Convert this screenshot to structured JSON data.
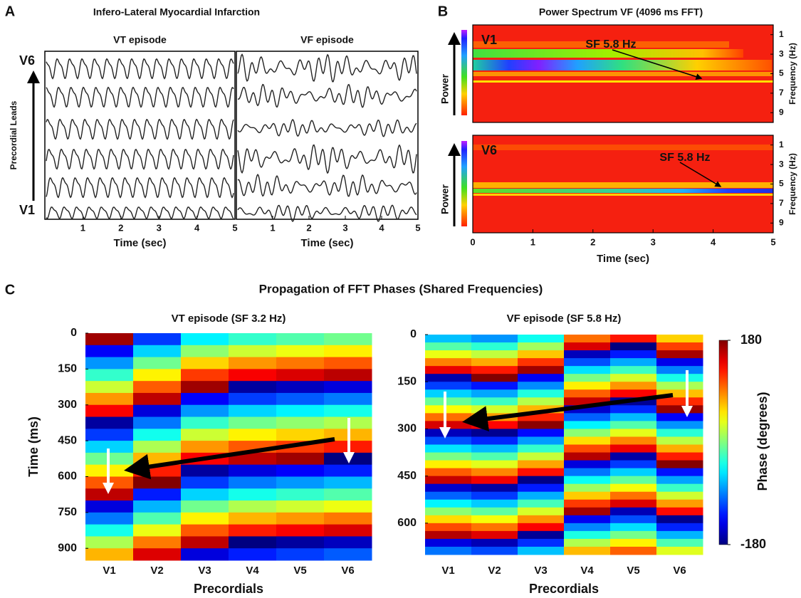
{
  "chart_data": [
    {
      "type": "ecg",
      "panel": "A",
      "title": "Infero-Lateral Myocardial Infarction",
      "ylabel": "Precordial Leads",
      "lead_top": "V6",
      "lead_bottom": "V1",
      "subplots": [
        {
          "title": "VT episode",
          "xlabel": "Time (sec)",
          "xlim": [
            0,
            5
          ],
          "xticks": [
            1,
            2,
            3,
            4,
            5
          ]
        },
        {
          "title": "VF episode",
          "xlabel": "Time (sec)",
          "xlim": [
            0,
            5
          ],
          "xticks": [
            1,
            2,
            3,
            4,
            5
          ]
        }
      ]
    },
    {
      "type": "spectrogram",
      "panel": "B",
      "title": "Power Spectrum VF (4096 ms FFT)",
      "xlabel": "Time (sec)",
      "xlim": [
        0,
        5
      ],
      "xticks": [
        0,
        1,
        2,
        3,
        4,
        5
      ],
      "ylabel": "Frequency (Hz)",
      "ylim": [
        0,
        10
      ],
      "yticks": [
        1,
        3,
        5,
        7,
        9
      ],
      "colorbar_label": "Power",
      "leads": [
        {
          "name": "V1",
          "annotation": "SF 5.8 Hz"
        },
        {
          "name": "V6",
          "annotation": "SF 5.8 Hz"
        }
      ]
    },
    {
      "type": "heatmap",
      "panel": "C",
      "title": "Propagation of FFT Phases (Shared Frequencies)",
      "colorbar": {
        "label": "Phase (degrees)",
        "clim": [
          -180,
          180
        ],
        "ticks": [
          -180,
          180
        ]
      },
      "subplots": [
        {
          "title": "VT episode (SF 3.2 Hz)",
          "xlabel": "Precordials",
          "ylabel": "Time (ms)",
          "categories": [
            "V1",
            "V2",
            "V3",
            "V4",
            "V5",
            "V6"
          ],
          "y": [
            0,
            50,
            100,
            150,
            200,
            250,
            300,
            350,
            400,
            450,
            500,
            550,
            600,
            650,
            700,
            750,
            800,
            850,
            900
          ],
          "ylim": [
            0,
            950
          ],
          "yticks": [
            0,
            150,
            300,
            450,
            600,
            750,
            900
          ],
          "values": [
            [
              169,
              -137,
              -82,
              -27,
              27,
              82,
              136,
              -169,
              -115,
              -60,
              -6,
              49,
              104,
              158,
              -147,
              -93,
              -38,
              16,
              71
            ],
            [
              -115,
              -60,
              -6,
              49,
              103,
              158,
              -148,
              -93,
              -39,
              16,
              70,
              125,
              179,
              -126,
              -71,
              -17,
              38,
              92,
              147
            ],
            [
              -49,
              5,
              60,
              115,
              169,
              -136,
              -82,
              -27,
              27,
              82,
              136,
              -169,
              -115,
              -60,
              -5,
              49,
              104,
              158,
              -147
            ],
            [
              -27,
              27,
              82,
              137,
              -169,
              -114,
              -60,
              -5,
              49,
              104,
              158,
              -147,
              -92,
              -38,
              17,
              71,
              126,
              -180,
              -125
            ],
            [
              -16,
              39,
              93,
              148,
              -158,
              -103,
              -49,
              6,
              60,
              115,
              169,
              -136,
              -81,
              -27,
              28,
              82,
              137,
              -169,
              -114
            ],
            [
              -5,
              50,
              104,
              159,
              -147,
              -92,
              -38,
              17,
              71,
              126,
              -180,
              -125,
              -70,
              -16,
              39,
              93,
              148,
              -158,
              -103
            ]
          ]
        },
        {
          "title": "VF episode (SF 5.8 Hz)",
          "xlabel": "Precordials",
          "categories": [
            "V1",
            "V2",
            "V3",
            "V4",
            "V5",
            "V6"
          ],
          "y": [
            0,
            25,
            50,
            75,
            100,
            125,
            150,
            175,
            200,
            225,
            250,
            275,
            300,
            325,
            350,
            375,
            400,
            425,
            450,
            475,
            500,
            525,
            550,
            575,
            600,
            625,
            650,
            675
          ],
          "ylim": [
            0,
            700
          ],
          "yticks": [
            0,
            150,
            300,
            450,
            600
          ],
          "values": [
            [
              -67,
              -15,
              38,
              90,
              142,
              -165,
              -113,
              -61,
              -8,
              44,
              96,
              149,
              -159,
              -107,
              -54,
              -2,
              50,
              103,
              155,
              -153,
              -100,
              -48,
              4,
              57,
              109,
              161,
              -146,
              -94
            ],
            [
              -82,
              -30,
              23,
              75,
              127,
              179,
              -128,
              -76,
              -23,
              29,
              81,
              134,
              -174,
              -122,
              -69,
              -17,
              35,
              88,
              140,
              -168,
              -115,
              -63,
              -11,
              42,
              94,
              146,
              -161,
              -109
            ],
            [
              -40,
              12,
              65,
              117,
              169,
              -138,
              -86,
              -34,
              19,
              71,
              123,
              176,
              -132,
              -80,
              -27,
              25,
              77,
              130,
              -178,
              -126,
              -73,
              -21,
              31,
              84,
              136,
              -172,
              -119,
              -67
            ],
            [
              96,
              148,
              -159,
              -107,
              -55,
              -2,
              50,
              102,
              155,
              -153,
              -101,
              -48,
              4,
              56,
              109,
              161,
              -147,
              -94,
              -42,
              10,
              63,
              115,
              167,
              -140,
              -88,
              -36,
              17,
              69
            ],
            [
              128,
              -180,
              -127,
              -75,
              -23,
              30,
              82,
              134,
              -173,
              -121,
              -69,
              -16,
              36,
              88,
              141,
              -167,
              -115,
              -62,
              -10,
              42,
              95,
              147,
              -161,
              -108,
              -56,
              -4,
              49,
              101
            ],
            [
              61,
              113,
              166,
              -142,
              -90,
              -37,
              15,
              67,
              120,
              172,
              -136,
              -83,
              -31,
              21,
              74,
              126,
              178,
              -129,
              -77,
              -25,
              28,
              80,
              132,
              -175,
              -123,
              -71,
              -18,
              34
            ]
          ]
        }
      ]
    }
  ]
}
